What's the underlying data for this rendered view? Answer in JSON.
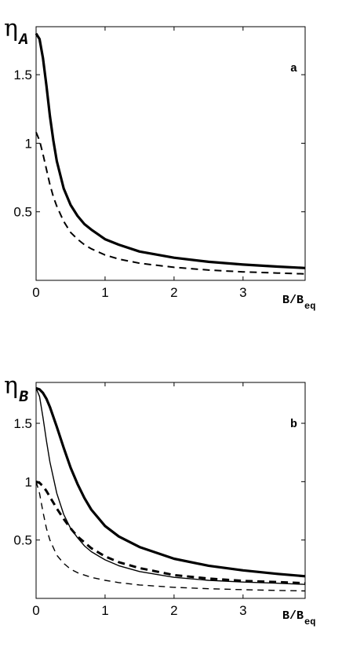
{
  "chart_data": [
    {
      "type": "line",
      "panel_label": "a",
      "ylabel": "η",
      "ylabel_sub": "A",
      "xlabel": "B/B",
      "xlabel_sub": "eq",
      "xlim": [
        0,
        3.9
      ],
      "ylim": [
        0,
        1.85
      ],
      "xticks": [
        0,
        1,
        2,
        3
      ],
      "yticks": [
        0.5,
        1,
        1.5
      ],
      "xtick_labels": [
        "0",
        "1",
        "2",
        "3"
      ],
      "ytick_labels": [
        "0.5",
        "1",
        "1.5"
      ],
      "series": [
        {
          "style": "solid-thick",
          "x": [
            0,
            0.05,
            0.1,
            0.15,
            0.2,
            0.25,
            0.3,
            0.4,
            0.5,
            0.6,
            0.7,
            0.8,
            1.0,
            1.2,
            1.5,
            2.0,
            2.5,
            3.0,
            3.5,
            3.9
          ],
          "y": [
            1.8,
            1.76,
            1.62,
            1.42,
            1.2,
            1.02,
            0.87,
            0.67,
            0.55,
            0.47,
            0.41,
            0.37,
            0.3,
            0.26,
            0.21,
            0.165,
            0.135,
            0.115,
            0.1,
            0.09
          ]
        },
        {
          "style": "dashed",
          "x": [
            0,
            0.05,
            0.1,
            0.15,
            0.2,
            0.25,
            0.3,
            0.4,
            0.5,
            0.6,
            0.7,
            0.8,
            1.0,
            1.2,
            1.5,
            2.0,
            2.5,
            3.0,
            3.5,
            3.9
          ],
          "y": [
            1.08,
            1.02,
            0.92,
            0.81,
            0.7,
            0.61,
            0.54,
            0.43,
            0.35,
            0.3,
            0.26,
            0.23,
            0.185,
            0.155,
            0.125,
            0.095,
            0.075,
            0.062,
            0.053,
            0.047
          ]
        }
      ]
    },
    {
      "type": "line",
      "panel_label": "b",
      "ylabel": "η",
      "ylabel_sub": "B",
      "xlabel": "B/B",
      "xlabel_sub": "eq",
      "xlim": [
        0,
        3.9
      ],
      "ylim": [
        0,
        1.85
      ],
      "xticks": [
        0,
        1,
        2,
        3
      ],
      "yticks": [
        0.5,
        1,
        1.5
      ],
      "xtick_labels": [
        "0",
        "1",
        "2",
        "3"
      ],
      "ytick_labels": [
        "0.5",
        "1",
        "1.5"
      ],
      "series": [
        {
          "style": "solid-thick",
          "x": [
            0,
            0.05,
            0.1,
            0.15,
            0.2,
            0.3,
            0.4,
            0.5,
            0.6,
            0.7,
            0.8,
            1.0,
            1.2,
            1.5,
            2.0,
            2.5,
            3.0,
            3.5,
            3.9
          ],
          "y": [
            1.8,
            1.79,
            1.76,
            1.71,
            1.64,
            1.47,
            1.29,
            1.12,
            0.98,
            0.86,
            0.76,
            0.62,
            0.53,
            0.44,
            0.34,
            0.28,
            0.24,
            0.21,
            0.19
          ]
        },
        {
          "style": "solid-thin",
          "x": [
            0,
            0.05,
            0.1,
            0.15,
            0.2,
            0.3,
            0.4,
            0.5,
            0.6,
            0.7,
            0.8,
            1.0,
            1.2,
            1.5,
            2.0,
            2.5,
            3.0,
            3.5,
            3.9
          ],
          "y": [
            1.8,
            1.73,
            1.55,
            1.35,
            1.17,
            0.9,
            0.72,
            0.6,
            0.52,
            0.45,
            0.4,
            0.33,
            0.28,
            0.23,
            0.18,
            0.155,
            0.14,
            0.13,
            0.12
          ]
        },
        {
          "style": "dashed-thick",
          "x": [
            0,
            0.05,
            0.1,
            0.15,
            0.2,
            0.3,
            0.4,
            0.5,
            0.6,
            0.7,
            0.8,
            1.0,
            1.2,
            1.5,
            2.0,
            2.5,
            3.0,
            3.5,
            3.9
          ],
          "y": [
            1.0,
            0.99,
            0.96,
            0.92,
            0.87,
            0.77,
            0.68,
            0.6,
            0.53,
            0.48,
            0.43,
            0.36,
            0.31,
            0.26,
            0.2,
            0.17,
            0.15,
            0.14,
            0.13
          ]
        },
        {
          "style": "dashed-thin",
          "x": [
            0,
            0.05,
            0.1,
            0.15,
            0.2,
            0.3,
            0.4,
            0.5,
            0.6,
            0.7,
            0.8,
            1.0,
            1.2,
            1.5,
            2.0,
            2.5,
            3.0,
            3.5,
            3.9
          ],
          "y": [
            1.0,
            0.9,
            0.74,
            0.6,
            0.5,
            0.37,
            0.3,
            0.25,
            0.22,
            0.2,
            0.18,
            0.155,
            0.135,
            0.115,
            0.095,
            0.083,
            0.075,
            0.068,
            0.064
          ]
        }
      ]
    }
  ]
}
